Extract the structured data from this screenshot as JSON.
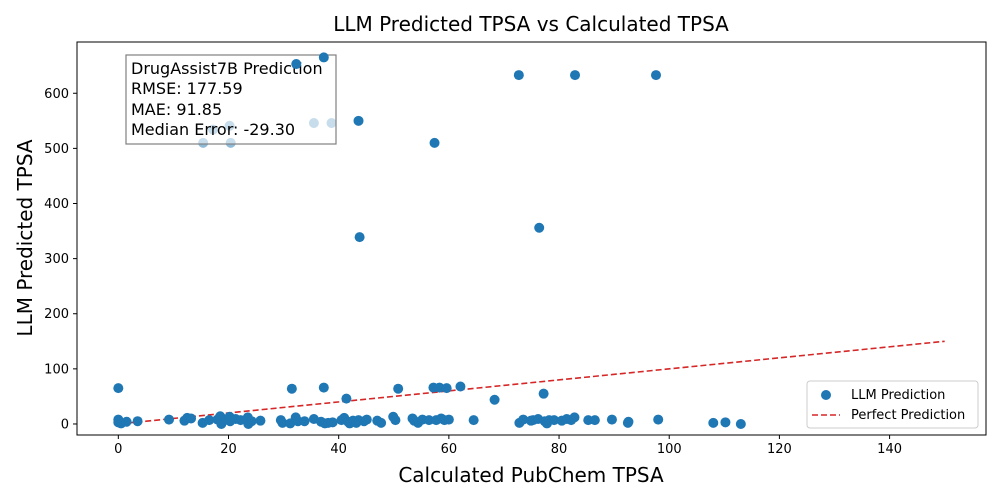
{
  "chart_data": {
    "type": "scatter",
    "title": "LLM Predicted TPSA vs Calculated TPSA",
    "xlabel": "Calculated PubChem TPSA",
    "ylabel": "LLM Predicted TPSA",
    "xlim": [
      -7.5,
      157.5
    ],
    "ylim": [
      -20,
      693
    ],
    "xticks": [
      0,
      20,
      40,
      60,
      80,
      100,
      120,
      140
    ],
    "yticks": [
      0,
      100,
      200,
      300,
      400,
      500,
      600
    ],
    "grid": false,
    "legend_position": "bottom-right",
    "series": [
      {
        "name": "LLM Prediction",
        "kind": "scatter",
        "color": "#1f77b4",
        "points": [
          [
            0,
            65
          ],
          [
            0,
            8
          ],
          [
            0,
            3
          ],
          [
            0.5,
            1
          ],
          [
            1.5,
            4
          ],
          [
            3.5,
            5
          ],
          [
            9.2,
            8
          ],
          [
            12,
            6
          ],
          [
            12.5,
            11
          ],
          [
            13.2,
            10
          ],
          [
            15.3,
            2
          ],
          [
            16.5,
            7
          ],
          [
            18,
            8
          ],
          [
            18.5,
            14
          ],
          [
            18.7,
            0
          ],
          [
            19.6,
            8
          ],
          [
            20.2,
            13
          ],
          [
            20.3,
            5
          ],
          [
            21.3,
            9
          ],
          [
            22.2,
            7
          ],
          [
            23.5,
            12
          ],
          [
            23.6,
            0
          ],
          [
            24.2,
            5
          ],
          [
            25.8,
            6
          ],
          [
            29.5,
            7
          ],
          [
            29.8,
            2
          ],
          [
            31.2,
            1
          ],
          [
            31.5,
            64
          ],
          [
            32.2,
            12
          ],
          [
            32.6,
            5
          ],
          [
            33.8,
            5
          ],
          [
            35.5,
            9
          ],
          [
            36.8,
            4
          ],
          [
            37.3,
            66
          ],
          [
            37.5,
            1
          ],
          [
            38.1,
            2
          ],
          [
            38.9,
            3
          ],
          [
            40.5,
            7
          ],
          [
            41,
            11
          ],
          [
            41.4,
            46
          ],
          [
            41.7,
            4
          ],
          [
            42,
            1
          ],
          [
            42.6,
            6
          ],
          [
            43.2,
            2
          ],
          [
            43.6,
            7
          ],
          [
            44.6,
            5
          ],
          [
            45.1,
            8
          ],
          [
            47,
            6
          ],
          [
            47.7,
            2
          ],
          [
            49.9,
            13
          ],
          [
            50.3,
            7
          ],
          [
            50.8,
            64
          ],
          [
            53.4,
            10
          ],
          [
            53.7,
            6
          ],
          [
            54.4,
            2
          ],
          [
            55.2,
            8
          ],
          [
            56.4,
            7
          ],
          [
            57.2,
            66
          ],
          [
            57.7,
            7
          ],
          [
            58.3,
            66
          ],
          [
            58.6,
            10
          ],
          [
            59.2,
            7
          ],
          [
            59.6,
            65
          ],
          [
            60,
            8
          ],
          [
            62.1,
            68
          ],
          [
            64.5,
            7
          ],
          [
            68.3,
            44
          ],
          [
            72.8,
            2
          ],
          [
            73.5,
            8
          ],
          [
            74.9,
            6
          ],
          [
            75.3,
            7
          ],
          [
            76.2,
            9
          ],
          [
            77.2,
            55
          ],
          [
            77.4,
            5
          ],
          [
            77.8,
            1
          ],
          [
            78.2,
            7
          ],
          [
            79.1,
            7
          ],
          [
            80.5,
            6
          ],
          [
            81.4,
            9
          ],
          [
            82.2,
            7
          ],
          [
            82.8,
            12
          ],
          [
            85.3,
            7
          ],
          [
            86.5,
            7
          ],
          [
            89.6,
            8
          ],
          [
            92.5,
            2
          ],
          [
            92.6,
            4
          ],
          [
            98,
            8
          ],
          [
            108,
            2
          ],
          [
            110.2,
            3
          ],
          [
            113,
            0
          ],
          [
            72.7,
            633
          ],
          [
            82.9,
            633
          ],
          [
            97.6,
            633
          ],
          [
            76.4,
            356
          ],
          [
            57.4,
            510
          ],
          [
            43.6,
            550
          ],
          [
            43.8,
            339
          ],
          [
            37.3,
            665
          ],
          [
            32.3,
            653
          ]
        ]
      },
      {
        "name": "LLM Prediction (faded, behind stats box)",
        "kind": "scatter",
        "color": "#1f77b4",
        "faded": true,
        "points": [
          [
            15.4,
            510
          ],
          [
            20.4,
            510
          ],
          [
            20.2,
            541
          ],
          [
            17.2,
            534
          ],
          [
            35.5,
            546
          ],
          [
            38.7,
            546
          ]
        ]
      },
      {
        "name": "Perfect Prediction",
        "kind": "line",
        "color": "#d62728",
        "dashed": true,
        "points": [
          [
            0,
            0
          ],
          [
            150,
            150
          ]
        ]
      }
    ],
    "annotation": {
      "lines": [
        "DrugAssist7B Prediction",
        "RMSE: 177.59",
        "MAE: 91.85",
        "Median Error: -29.30"
      ],
      "position": "top-left"
    },
    "legend": [
      "LLM Prediction",
      "Perfect Prediction"
    ]
  }
}
